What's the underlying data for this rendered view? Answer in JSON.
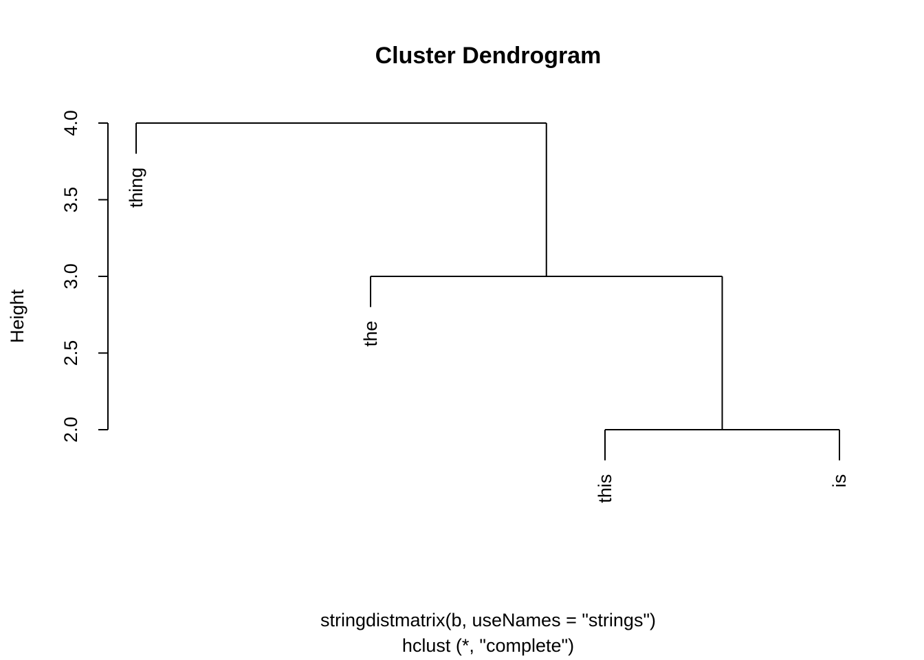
{
  "chart_data": {
    "type": "dendrogram",
    "title": "Cluster Dendrogram",
    "ylabel": "Height",
    "xlabel": "stringdistmatrix(b, useNames = \"strings\")",
    "sublabel": "hclust (*, \"complete\")",
    "ylim": [
      2.0,
      4.0
    ],
    "yticks": [
      "2.0",
      "2.5",
      "3.0",
      "3.5",
      "4.0"
    ],
    "ytick_values": [
      2.0,
      2.5,
      3.0,
      3.5,
      4.0
    ],
    "leaves": [
      "thing",
      "the",
      "this",
      "is"
    ],
    "merges": [
      {
        "left": "this",
        "right": "is",
        "height": 2.0
      },
      {
        "left": "the",
        "right": "this+is",
        "height": 3.0
      },
      {
        "left": "thing",
        "right": "the+this+is",
        "height": 4.0
      }
    ]
  }
}
